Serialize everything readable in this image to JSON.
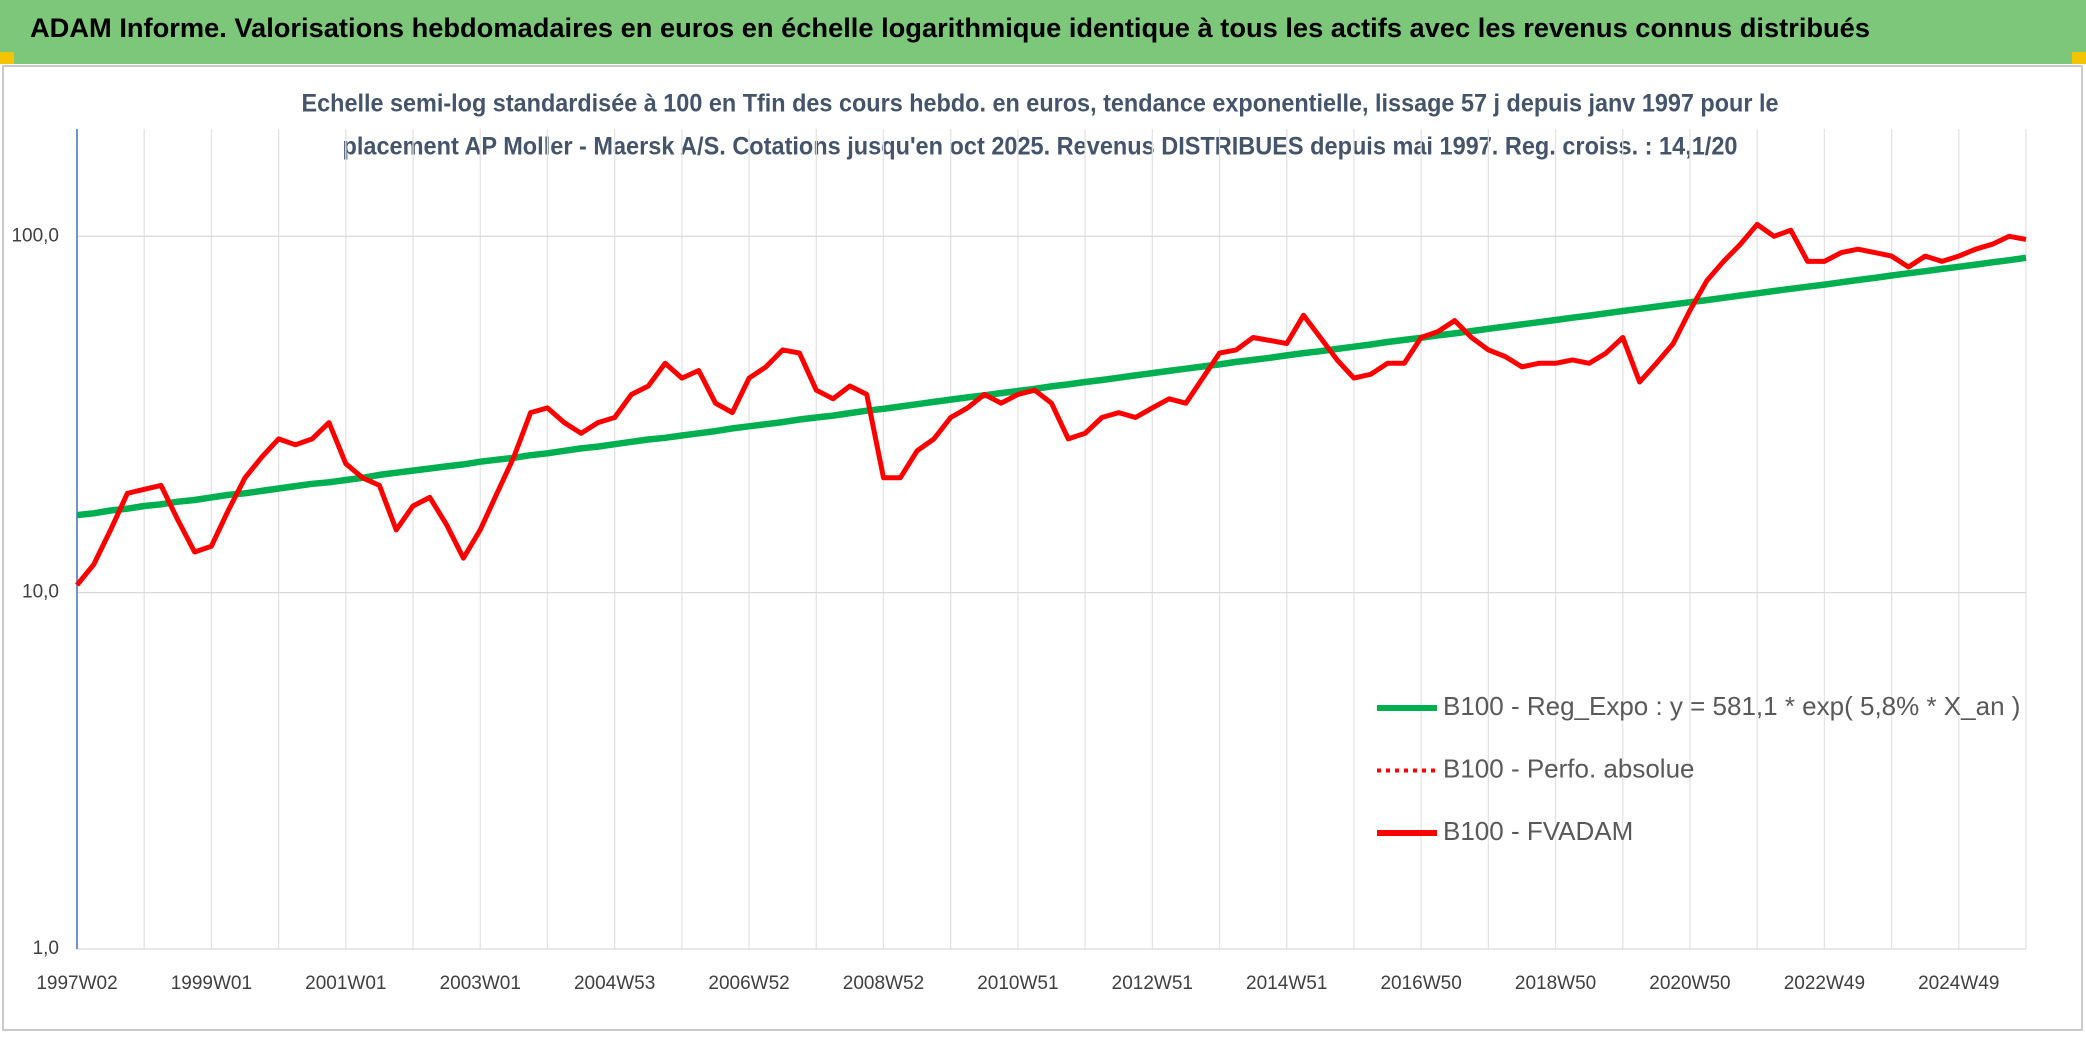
{
  "header": {
    "title": "ADAM Informe. Valorisations hebdomadaires en euros en échelle logarithmique identique à tous les actifs avec les revenus connus distribués"
  },
  "chart_data": {
    "type": "line",
    "subtitle": [
      "Echelle semi-log standardisée à 100 en Tfin des cours hebdo. en euros, tendance exponentielle, lissage 57 j depuis janv 1997 pour le",
      "placement AP Moller - Maersk A/S. Cotations jusqu'en oct 2025. Revenus DISTRIBUES depuis mai 1997. Reg. croiss. : 14,1/20"
    ],
    "log_scale": true,
    "grid": true,
    "legend": "right",
    "ylim": [
      1,
      200
    ],
    "yticks": [
      {
        "value": 1,
        "label": "1,0"
      },
      {
        "value": 10,
        "label": "10,0"
      },
      {
        "value": 100,
        "label": "100,0"
      }
    ],
    "categories": [
      "1997W02",
      null,
      null,
      null,
      null,
      null,
      null,
      null,
      "1999W01",
      null,
      null,
      null,
      null,
      null,
      null,
      null,
      "2001W01",
      null,
      null,
      null,
      null,
      null,
      null,
      null,
      "2003W01",
      null,
      null,
      null,
      null,
      null,
      null,
      null,
      "2004W53",
      null,
      null,
      null,
      null,
      null,
      null,
      null,
      "2006W52",
      null,
      null,
      null,
      null,
      null,
      null,
      null,
      "2008W52",
      null,
      null,
      null,
      null,
      null,
      null,
      null,
      "2010W51",
      null,
      null,
      null,
      null,
      null,
      null,
      null,
      "2012W51",
      null,
      null,
      null,
      null,
      null,
      null,
      null,
      "2014W51",
      null,
      null,
      null,
      null,
      null,
      null,
      null,
      "2016W50",
      null,
      null,
      null,
      null,
      null,
      null,
      null,
      "2018W50",
      null,
      null,
      null,
      null,
      null,
      null,
      null,
      "2020W50",
      null,
      null,
      null,
      null,
      null,
      null,
      null,
      "2022W49",
      null,
      null,
      null,
      null,
      null,
      null,
      null,
      "2024W49",
      null,
      null,
      null,
      null
    ],
    "series": [
      {
        "name": "B100 - Reg_Expo : y = 581,1 * exp( 5,8% *  X_an )",
        "color": "#00b050",
        "dash": "solid",
        "values": [
          16.5,
          16.7,
          17.0,
          17.2,
          17.5,
          17.7,
          18.0,
          18.2,
          18.5,
          18.8,
          19.0,
          19.3,
          19.6,
          19.9,
          20.2,
          20.4,
          20.7,
          21.0,
          21.4,
          21.7,
          22.0,
          22.3,
          22.6,
          22.9,
          23.3,
          23.6,
          23.9,
          24.3,
          24.6,
          25.0,
          25.4,
          25.7,
          26.1,
          26.5,
          26.9,
          27.2,
          27.6,
          28.0,
          28.4,
          28.9,
          29.3,
          29.7,
          30.1,
          30.6,
          31.0,
          31.4,
          31.9,
          32.4,
          32.8,
          33.3,
          33.8,
          34.3,
          34.8,
          35.3,
          35.8,
          36.3,
          36.8,
          37.3,
          37.9,
          38.4,
          39.0,
          39.5,
          40.1,
          40.7,
          41.3,
          41.9,
          42.5,
          43.1,
          43.7,
          44.4,
          45.0,
          45.6,
          46.3,
          47.0,
          47.6,
          48.3,
          49.0,
          49.7,
          50.5,
          51.2,
          51.9,
          52.7,
          53.4,
          54.2,
          55.0,
          55.8,
          56.6,
          57.4,
          58.2,
          59.1,
          59.9,
          60.8,
          61.7,
          62.6,
          63.5,
          64.4,
          65.3,
          66.2,
          67.2,
          68.2,
          69.2,
          70.2,
          71.2,
          72.2,
          73.2,
          74.3,
          75.4,
          76.4,
          77.6,
          78.7,
          79.8,
          81.0,
          82.1,
          83.3,
          84.5,
          85.7,
          87.0
        ]
      },
      {
        "name": "B100 - Perfo. absolue",
        "color": "#ff0000",
        "dash": "dotted",
        "values": [
          null,
          null,
          null,
          null,
          null,
          null,
          null,
          null,
          null,
          null,
          null,
          null,
          null,
          null,
          null,
          null,
          null,
          null,
          null,
          null,
          null,
          null,
          null,
          null,
          null,
          null,
          null,
          null,
          null,
          null,
          null,
          null,
          null,
          null,
          null,
          null,
          null,
          null,
          null,
          null,
          null,
          null,
          null,
          null,
          null,
          null,
          null,
          null,
          null,
          null,
          null,
          null,
          null,
          null,
          null,
          null,
          null,
          null,
          null,
          null,
          null,
          null,
          null,
          null,
          null,
          null,
          null,
          null,
          null,
          null,
          null,
          null,
          null,
          null,
          null,
          null,
          null,
          null,
          null,
          null,
          null,
          null,
          null,
          null,
          null,
          null,
          null,
          null,
          null,
          null,
          null,
          null,
          null,
          null,
          null,
          null,
          null,
          null,
          null,
          null,
          null,
          null,
          null,
          null,
          null,
          null,
          null,
          null,
          null,
          null,
          null,
          null,
          null,
          null,
          null,
          null,
          null
        ]
      },
      {
        "name": "B100 - FVADAM",
        "color": "#ff0000",
        "dash": "solid",
        "values": [
          10.5,
          12,
          15,
          19,
          19.5,
          20,
          16,
          13,
          13.5,
          17,
          21,
          24,
          27,
          26,
          27,
          30,
          23,
          21,
          20,
          15,
          17.5,
          18.5,
          15.5,
          12.5,
          15,
          19,
          24,
          32,
          33,
          30,
          28,
          30,
          31,
          36,
          38,
          44,
          40,
          42,
          34,
          32,
          40,
          43,
          48,
          47,
          37,
          35,
          38,
          36,
          21,
          21,
          25,
          27,
          31,
          33,
          36,
          34,
          36,
          37,
          34,
          27,
          28,
          31,
          32,
          31,
          33,
          35,
          34,
          40,
          47,
          48,
          52,
          51,
          50,
          60,
          52,
          45,
          40,
          41,
          44,
          44,
          52,
          54,
          58,
          52,
          48,
          46,
          43,
          44,
          44,
          45,
          44,
          47,
          52,
          39,
          44,
          50,
          62,
          75,
          85,
          95,
          108,
          100,
          104,
          85,
          85,
          90,
          92,
          90,
          88,
          82,
          88,
          85,
          88,
          92,
          95,
          100,
          98
        ]
      }
    ]
  }
}
